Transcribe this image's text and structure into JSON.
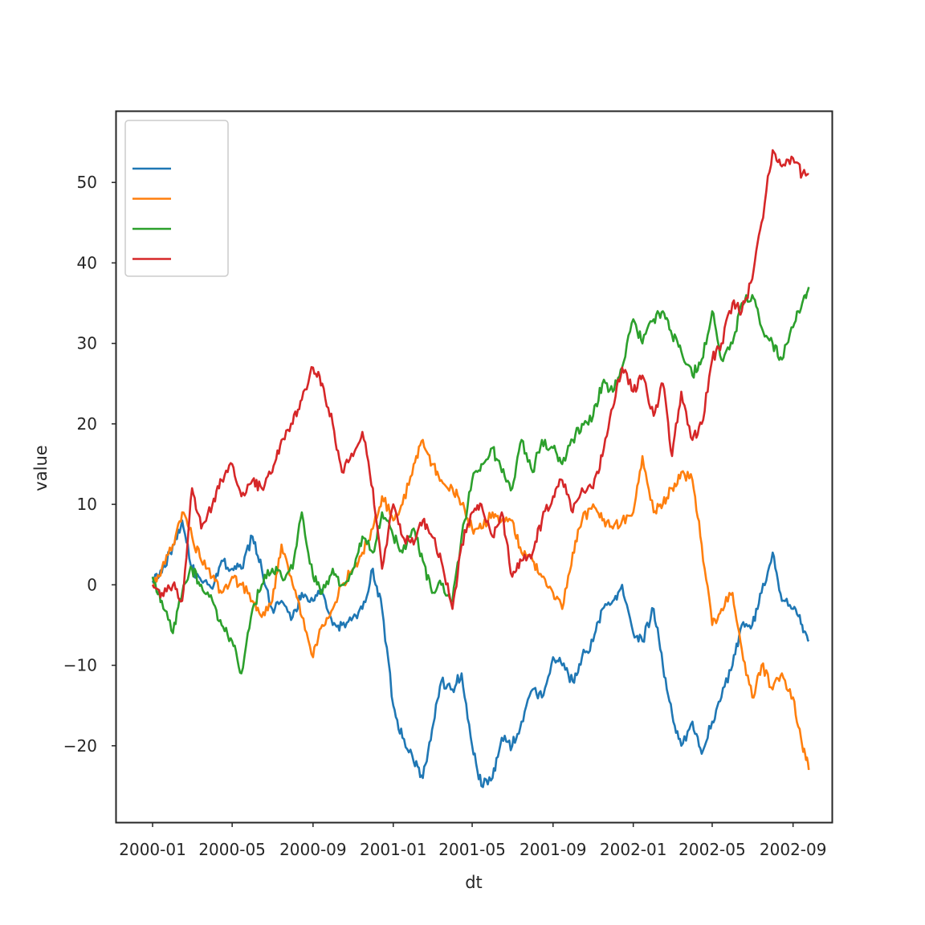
{
  "chart_data": {
    "type": "line",
    "title": "",
    "xlabel": "dt",
    "ylabel": "value",
    "x_axis": {
      "type": "date",
      "range": [
        "1999-11-07",
        "2002-10-30"
      ],
      "ticks": [
        {
          "date": "2000-01-01",
          "label": "2000-01"
        },
        {
          "date": "2000-05-01",
          "label": "2000-05"
        },
        {
          "date": "2000-09-01",
          "label": "2000-09"
        },
        {
          "date": "2001-01-01",
          "label": "2001-01"
        },
        {
          "date": "2001-05-01",
          "label": "2001-05"
        },
        {
          "date": "2001-09-01",
          "label": "2001-09"
        },
        {
          "date": "2002-01-01",
          "label": "2002-01"
        },
        {
          "date": "2002-05-01",
          "label": "2002-05"
        },
        {
          "date": "2002-09-01",
          "label": "2002-09"
        }
      ]
    },
    "y_axis": {
      "range": [
        -29.5,
        58.8
      ],
      "ticks": [
        {
          "value": -20,
          "label": "−20"
        },
        {
          "value": -10,
          "label": "−10"
        },
        {
          "value": 0,
          "label": "0"
        },
        {
          "value": 10,
          "label": "10"
        },
        {
          "value": 20,
          "label": "20"
        },
        {
          "value": 30,
          "label": "30"
        },
        {
          "value": 40,
          "label": "40"
        },
        {
          "value": 50,
          "label": "50"
        }
      ]
    },
    "grid": false,
    "legend": {
      "position": "top-left",
      "entries_have_text": false
    },
    "series": [
      {
        "color": "#1f77b4",
        "points": [
          [
            "2000-01-01",
            0.5
          ],
          [
            "2000-01-15",
            1.5
          ],
          [
            "2000-02-01",
            5
          ],
          [
            "2000-02-15",
            8
          ],
          [
            "2000-03-01",
            2
          ],
          [
            "2000-03-15",
            0.5
          ],
          [
            "2000-04-01",
            -0.5
          ],
          [
            "2000-04-15",
            3
          ],
          [
            "2000-05-01",
            2
          ],
          [
            "2000-05-15",
            2
          ],
          [
            "2000-06-01",
            6
          ],
          [
            "2000-06-15",
            2
          ],
          [
            "2000-07-01",
            -3
          ],
          [
            "2000-07-15",
            -2
          ],
          [
            "2000-08-01",
            -4
          ],
          [
            "2000-08-15",
            -1
          ],
          [
            "2000-09-01",
            -2
          ],
          [
            "2000-09-15",
            -1
          ],
          [
            "2000-10-01",
            -5
          ],
          [
            "2000-10-15",
            -5
          ],
          [
            "2000-11-01",
            -4
          ],
          [
            "2000-11-15",
            -3
          ],
          [
            "2000-12-01",
            2
          ],
          [
            "2000-12-15",
            -3
          ],
          [
            "2001-01-01",
            -15
          ],
          [
            "2001-01-15",
            -19
          ],
          [
            "2001-02-01",
            -22
          ],
          [
            "2001-02-15",
            -24
          ],
          [
            "2001-03-01",
            -18
          ],
          [
            "2001-03-15",
            -12
          ],
          [
            "2001-04-01",
            -13
          ],
          [
            "2001-04-15",
            -11
          ],
          [
            "2001-05-01",
            -20
          ],
          [
            "2001-05-15",
            -25
          ],
          [
            "2001-06-01",
            -24
          ],
          [
            "2001-06-15",
            -19
          ],
          [
            "2001-07-01",
            -20
          ],
          [
            "2001-07-15",
            -17
          ],
          [
            "2001-08-01",
            -13
          ],
          [
            "2001-08-15",
            -14
          ],
          [
            "2001-09-01",
            -9
          ],
          [
            "2001-09-15",
            -10
          ],
          [
            "2001-10-01",
            -12
          ],
          [
            "2001-10-15",
            -9
          ],
          [
            "2001-11-01",
            -7
          ],
          [
            "2001-11-15",
            -3
          ],
          [
            "2001-12-01",
            -2
          ],
          [
            "2001-12-15",
            0
          ],
          [
            "2002-01-01",
            -6
          ],
          [
            "2002-01-15",
            -7
          ],
          [
            "2002-02-01",
            -3
          ],
          [
            "2002-02-15",
            -10
          ],
          [
            "2002-03-01",
            -16
          ],
          [
            "2002-03-15",
            -20
          ],
          [
            "2002-04-01",
            -17
          ],
          [
            "2002-04-15",
            -21
          ],
          [
            "2002-05-01",
            -17
          ],
          [
            "2002-05-15",
            -14
          ],
          [
            "2002-06-01",
            -10
          ],
          [
            "2002-06-15",
            -5
          ],
          [
            "2002-07-01",
            -5
          ],
          [
            "2002-07-15",
            -1
          ],
          [
            "2002-08-01",
            4
          ],
          [
            "2002-08-15",
            -2
          ],
          [
            "2002-09-01",
            -3
          ],
          [
            "2002-09-15",
            -5
          ],
          [
            "2002-09-25",
            -7
          ]
        ]
      },
      {
        "color": "#ff7f0e",
        "points": [
          [
            "2000-01-01",
            0
          ],
          [
            "2000-01-15",
            2
          ],
          [
            "2000-02-01",
            5
          ],
          [
            "2000-02-15",
            9
          ],
          [
            "2000-03-01",
            6
          ],
          [
            "2000-03-15",
            3
          ],
          [
            "2000-04-01",
            1
          ],
          [
            "2000-04-15",
            -1
          ],
          [
            "2000-05-01",
            1
          ],
          [
            "2000-05-15",
            0
          ],
          [
            "2000-06-01",
            -2
          ],
          [
            "2000-06-15",
            -4
          ],
          [
            "2000-07-01",
            -2
          ],
          [
            "2000-07-15",
            5
          ],
          [
            "2000-08-01",
            0
          ],
          [
            "2000-08-15",
            -4
          ],
          [
            "2000-09-01",
            -9
          ],
          [
            "2000-09-15",
            -5
          ],
          [
            "2000-10-01",
            -3
          ],
          [
            "2000-10-15",
            0
          ],
          [
            "2000-11-01",
            2
          ],
          [
            "2000-11-15",
            4
          ],
          [
            "2000-12-01",
            7
          ],
          [
            "2000-12-15",
            11
          ],
          [
            "2001-01-01",
            8
          ],
          [
            "2001-01-15",
            10
          ],
          [
            "2001-02-01",
            15
          ],
          [
            "2001-02-15",
            18
          ],
          [
            "2001-03-01",
            15
          ],
          [
            "2001-03-15",
            13
          ],
          [
            "2001-04-01",
            12
          ],
          [
            "2001-04-15",
            10
          ],
          [
            "2001-05-01",
            7
          ],
          [
            "2001-05-15",
            7
          ],
          [
            "2001-06-01",
            9
          ],
          [
            "2001-06-15",
            8
          ],
          [
            "2001-07-01",
            8
          ],
          [
            "2001-07-15",
            4
          ],
          [
            "2001-08-01",
            3
          ],
          [
            "2001-08-15",
            1
          ],
          [
            "2001-09-01",
            -1
          ],
          [
            "2001-09-15",
            -3
          ],
          [
            "2001-10-01",
            4
          ],
          [
            "2001-10-15",
            8
          ],
          [
            "2001-11-01",
            10
          ],
          [
            "2001-11-15",
            8
          ],
          [
            "2001-12-01",
            7
          ],
          [
            "2001-12-15",
            8
          ],
          [
            "2002-01-01",
            9
          ],
          [
            "2002-01-15",
            16
          ],
          [
            "2002-02-01",
            9
          ],
          [
            "2002-02-15",
            10
          ],
          [
            "2002-03-01",
            12
          ],
          [
            "2002-03-15",
            14
          ],
          [
            "2002-04-01",
            13
          ],
          [
            "2002-04-15",
            5
          ],
          [
            "2002-05-01",
            -5
          ],
          [
            "2002-05-15",
            -3
          ],
          [
            "2002-06-01",
            -1
          ],
          [
            "2002-06-15",
            -8
          ],
          [
            "2002-07-01",
            -14
          ],
          [
            "2002-07-15",
            -10
          ],
          [
            "2002-08-01",
            -13
          ],
          [
            "2002-08-15",
            -11
          ],
          [
            "2002-09-01",
            -14
          ],
          [
            "2002-09-15",
            -20
          ],
          [
            "2002-09-25",
            -23
          ]
        ]
      },
      {
        "color": "#2ca02c",
        "points": [
          [
            "2000-01-01",
            1
          ],
          [
            "2000-01-15",
            -2
          ],
          [
            "2000-02-01",
            -6
          ],
          [
            "2000-02-15",
            -1
          ],
          [
            "2000-03-01",
            2
          ],
          [
            "2000-03-15",
            0
          ],
          [
            "2000-04-01",
            -2
          ],
          [
            "2000-04-15",
            -5
          ],
          [
            "2000-05-01",
            -7
          ],
          [
            "2000-05-15",
            -11
          ],
          [
            "2000-06-01",
            -3
          ],
          [
            "2000-06-15",
            0
          ],
          [
            "2000-07-01",
            2
          ],
          [
            "2000-07-15",
            1
          ],
          [
            "2000-08-01",
            2
          ],
          [
            "2000-08-15",
            9
          ],
          [
            "2000-09-01",
            1
          ],
          [
            "2000-09-15",
            -1
          ],
          [
            "2000-10-01",
            2
          ],
          [
            "2000-10-15",
            0
          ],
          [
            "2000-11-01",
            2
          ],
          [
            "2000-11-15",
            6
          ],
          [
            "2000-12-01",
            4
          ],
          [
            "2000-12-15",
            9
          ],
          [
            "2001-01-01",
            6
          ],
          [
            "2001-01-15",
            4
          ],
          [
            "2001-02-01",
            7
          ],
          [
            "2001-02-15",
            3
          ],
          [
            "2001-03-01",
            -1
          ],
          [
            "2001-03-15",
            0
          ],
          [
            "2001-04-01",
            -2
          ],
          [
            "2001-04-15",
            6
          ],
          [
            "2001-05-01",
            13
          ],
          [
            "2001-05-15",
            15
          ],
          [
            "2001-06-01",
            17
          ],
          [
            "2001-06-15",
            14
          ],
          [
            "2001-07-01",
            12
          ],
          [
            "2001-07-15",
            18
          ],
          [
            "2001-08-01",
            14
          ],
          [
            "2001-08-15",
            18
          ],
          [
            "2001-09-01",
            17
          ],
          [
            "2001-09-15",
            15
          ],
          [
            "2001-10-01",
            18
          ],
          [
            "2001-10-15",
            20
          ],
          [
            "2001-11-01",
            21
          ],
          [
            "2001-11-15",
            25
          ],
          [
            "2001-12-01",
            24
          ],
          [
            "2001-12-15",
            27
          ],
          [
            "2002-01-01",
            33
          ],
          [
            "2002-01-15",
            30
          ],
          [
            "2002-02-01",
            33
          ],
          [
            "2002-02-15",
            34
          ],
          [
            "2002-03-01",
            31
          ],
          [
            "2002-03-15",
            29
          ],
          [
            "2002-04-01",
            26
          ],
          [
            "2002-04-15",
            28
          ],
          [
            "2002-05-01",
            34
          ],
          [
            "2002-05-15",
            28
          ],
          [
            "2002-06-01",
            30
          ],
          [
            "2002-06-15",
            35
          ],
          [
            "2002-07-01",
            36
          ],
          [
            "2002-07-15",
            32
          ],
          [
            "2002-08-01",
            30
          ],
          [
            "2002-08-15",
            28
          ],
          [
            "2002-09-01",
            32
          ],
          [
            "2002-09-15",
            35
          ],
          [
            "2002-09-25",
            37
          ]
        ]
      },
      {
        "color": "#d62728",
        "points": [
          [
            "2000-01-01",
            0
          ],
          [
            "2000-01-15",
            -1
          ],
          [
            "2000-02-01",
            0
          ],
          [
            "2000-02-15",
            -2
          ],
          [
            "2000-03-01",
            12
          ],
          [
            "2000-03-15",
            7
          ],
          [
            "2000-04-01",
            10
          ],
          [
            "2000-04-15",
            13
          ],
          [
            "2000-05-01",
            15
          ],
          [
            "2000-05-15",
            11
          ],
          [
            "2000-06-01",
            13
          ],
          [
            "2000-06-15",
            12
          ],
          [
            "2000-07-01",
            14
          ],
          [
            "2000-07-15",
            18
          ],
          [
            "2000-08-01",
            20
          ],
          [
            "2000-08-15",
            23
          ],
          [
            "2000-09-01",
            27
          ],
          [
            "2000-09-15",
            25
          ],
          [
            "2000-10-01",
            20
          ],
          [
            "2000-10-15",
            14
          ],
          [
            "2000-11-01",
            16
          ],
          [
            "2000-11-15",
            19
          ],
          [
            "2000-12-01",
            12
          ],
          [
            "2000-12-15",
            2
          ],
          [
            "2001-01-01",
            10
          ],
          [
            "2001-01-15",
            6
          ],
          [
            "2001-02-01",
            5
          ],
          [
            "2001-02-15",
            8
          ],
          [
            "2001-03-01",
            6
          ],
          [
            "2001-03-15",
            3
          ],
          [
            "2001-04-01",
            -3
          ],
          [
            "2001-04-15",
            5
          ],
          [
            "2001-05-01",
            9
          ],
          [
            "2001-05-15",
            10
          ],
          [
            "2001-06-01",
            6
          ],
          [
            "2001-06-15",
            9
          ],
          [
            "2001-07-01",
            1
          ],
          [
            "2001-07-15",
            3
          ],
          [
            "2001-08-01",
            4
          ],
          [
            "2001-08-15",
            8
          ],
          [
            "2001-09-01",
            11
          ],
          [
            "2001-09-15",
            13
          ],
          [
            "2001-10-01",
            9
          ],
          [
            "2001-10-15",
            12
          ],
          [
            "2001-11-01",
            12
          ],
          [
            "2001-11-15",
            16
          ],
          [
            "2001-12-01",
            22
          ],
          [
            "2001-12-15",
            27
          ],
          [
            "2002-01-01",
            24
          ],
          [
            "2002-01-15",
            26
          ],
          [
            "2002-02-01",
            21
          ],
          [
            "2002-02-15",
            25
          ],
          [
            "2002-03-01",
            16
          ],
          [
            "2002-03-15",
            24
          ],
          [
            "2002-04-01",
            18
          ],
          [
            "2002-04-15",
            20
          ],
          [
            "2002-05-01",
            28
          ],
          [
            "2002-05-15",
            30
          ],
          [
            "2002-06-01",
            35
          ],
          [
            "2002-06-15",
            34
          ],
          [
            "2002-07-01",
            38
          ],
          [
            "2002-07-15",
            45
          ],
          [
            "2002-08-01",
            54
          ],
          [
            "2002-08-15",
            52
          ],
          [
            "2002-09-01",
            53
          ],
          [
            "2002-09-15",
            51
          ],
          [
            "2002-09-25",
            51
          ]
        ]
      }
    ]
  }
}
